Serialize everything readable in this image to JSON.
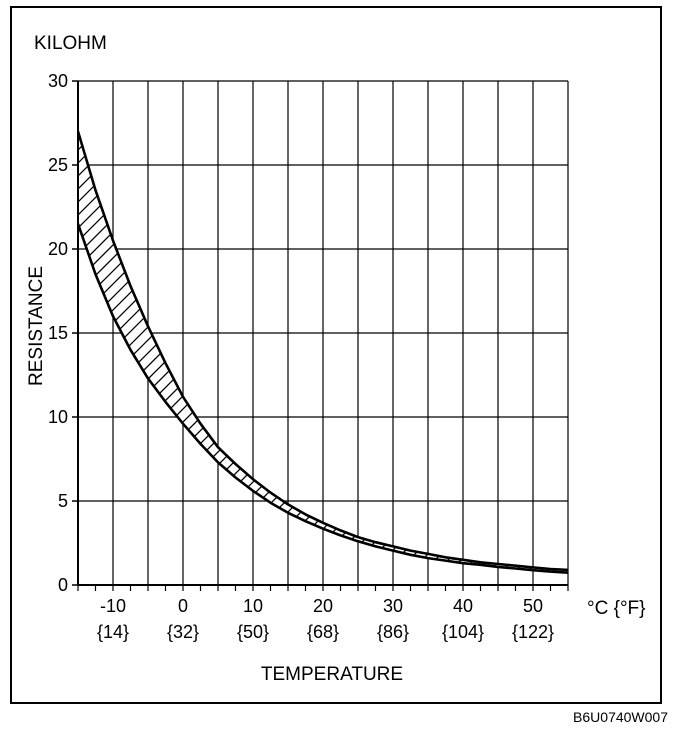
{
  "chart_data": {
    "type": "area",
    "unit_label": "KILOHM",
    "ylabel": "RESISTANCE",
    "xlabel": "TEMPERATURE",
    "x_unit": "°C {°F}",
    "xlim": [
      -15,
      55
    ],
    "ylim": [
      0,
      30
    ],
    "grid": true,
    "x_gridlines": [
      -15,
      -10,
      -5,
      0,
      5,
      10,
      15,
      20,
      25,
      30,
      35,
      40,
      45,
      50,
      55
    ],
    "y_ticks": [
      0,
      5,
      10,
      15,
      20,
      25,
      30
    ],
    "x_ticks": [
      {
        "c": -10,
        "label": "-10",
        "f_label": "{14}"
      },
      {
        "c": 0,
        "label": "0",
        "f_label": "{32}"
      },
      {
        "c": 10,
        "label": "10",
        "f_label": "{50}"
      },
      {
        "c": 20,
        "label": "20",
        "f_label": "{68}"
      },
      {
        "c": 30,
        "label": "30",
        "f_label": "{86}"
      },
      {
        "c": 40,
        "label": "40",
        "f_label": "{104}"
      },
      {
        "c": 50,
        "label": "50",
        "f_label": "{122}"
      }
    ],
    "series": [
      {
        "x": [
          -15,
          -12.5,
          -10,
          -7.5,
          -5,
          -2.5,
          0,
          2.5,
          5,
          7.5,
          10,
          12.5,
          15,
          17.5,
          20,
          22.5,
          25,
          27.5,
          30,
          32.5,
          35,
          37.5,
          40,
          42.5,
          45,
          47.5,
          50,
          52.5,
          55
        ],
        "values": [
          27.0,
          23.5,
          20.5,
          17.8,
          15.4,
          13.2,
          11.2,
          9.6,
          8.2,
          7.2,
          6.3,
          5.5,
          4.8,
          4.2,
          3.7,
          3.25,
          2.85,
          2.55,
          2.3,
          2.05,
          1.85,
          1.65,
          1.5,
          1.35,
          1.25,
          1.15,
          1.05,
          0.95,
          0.9
        ]
      },
      {
        "x": [
          -15,
          -12.5,
          -10,
          -7.5,
          -5,
          -2.5,
          0,
          2.5,
          5,
          7.5,
          10,
          12.5,
          15,
          17.5,
          20,
          22.5,
          25,
          27.5,
          30,
          32.5,
          35,
          37.5,
          40,
          42.5,
          45,
          47.5,
          50,
          52.5,
          55
        ],
        "values": [
          21.5,
          18.5,
          16.0,
          14.0,
          12.3,
          10.9,
          9.6,
          8.4,
          7.3,
          6.4,
          5.6,
          4.9,
          4.3,
          3.8,
          3.35,
          2.95,
          2.6,
          2.3,
          2.05,
          1.8,
          1.6,
          1.45,
          1.3,
          1.2,
          1.08,
          0.98,
          0.88,
          0.8,
          0.73
        ]
      }
    ]
  },
  "figure_code": "B6U0740W007"
}
